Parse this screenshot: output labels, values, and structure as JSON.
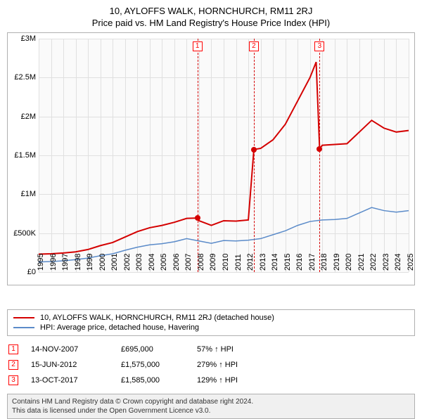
{
  "title": {
    "line1": "10, AYLOFFS WALK, HORNCHURCH, RM11 2RJ",
    "line2": "Price paid vs. HM Land Registry's House Price Index (HPI)"
  },
  "chart": {
    "type": "line",
    "background_color": "#fafafa",
    "grid_color": "#e0e0e0",
    "border_color": "#b0b0b0",
    "y": {
      "min": 0,
      "max": 3000000,
      "ticks": [
        {
          "v": 0,
          "label": "£0"
        },
        {
          "v": 500000,
          "label": "£500K"
        },
        {
          "v": 1000000,
          "label": "£1M"
        },
        {
          "v": 1500000,
          "label": "£1.5M"
        },
        {
          "v": 2000000,
          "label": "£2M"
        },
        {
          "v": 2500000,
          "label": "£2.5M"
        },
        {
          "v": 3000000,
          "label": "£3M"
        }
      ]
    },
    "x": {
      "min": 1995,
      "max": 2025,
      "ticks": [
        1995,
        1996,
        1997,
        1998,
        1999,
        2000,
        2001,
        2002,
        2003,
        2004,
        2005,
        2006,
        2007,
        2008,
        2009,
        2010,
        2011,
        2012,
        2013,
        2014,
        2015,
        2016,
        2017,
        2018,
        2019,
        2020,
        2021,
        2022,
        2023,
        2024,
        2025
      ]
    },
    "series": {
      "property": {
        "label": "10, AYLOFFS WALK, HORNCHURCH, RM11 2RJ (detached house)",
        "color": "#d40000",
        "line_width": 2,
        "points": [
          [
            1995,
            230000
          ],
          [
            1996,
            235000
          ],
          [
            1997,
            245000
          ],
          [
            1998,
            260000
          ],
          [
            1999,
            290000
          ],
          [
            2000,
            340000
          ],
          [
            2001,
            380000
          ],
          [
            2002,
            450000
          ],
          [
            2003,
            520000
          ],
          [
            2004,
            570000
          ],
          [
            2005,
            600000
          ],
          [
            2006,
            640000
          ],
          [
            2007,
            690000
          ],
          [
            2007.87,
            695000
          ],
          [
            2008,
            660000
          ],
          [
            2009,
            600000
          ],
          [
            2010,
            660000
          ],
          [
            2011,
            655000
          ],
          [
            2012,
            670000
          ],
          [
            2012.45,
            1575000
          ],
          [
            2013,
            1590000
          ],
          [
            2014,
            1700000
          ],
          [
            2015,
            1900000
          ],
          [
            2016,
            2200000
          ],
          [
            2017,
            2500000
          ],
          [
            2017.5,
            2700000
          ],
          [
            2017.78,
            1585000
          ],
          [
            2018,
            1630000
          ],
          [
            2019,
            1640000
          ],
          [
            2020,
            1650000
          ],
          [
            2021,
            1800000
          ],
          [
            2022,
            1950000
          ],
          [
            2023,
            1850000
          ],
          [
            2024,
            1800000
          ],
          [
            2025,
            1820000
          ]
        ]
      },
      "hpi": {
        "label": "HPI: Average price, detached house, Havering",
        "color": "#5b8bc9",
        "line_width": 1.5,
        "points": [
          [
            1995,
            130000
          ],
          [
            1996,
            135000
          ],
          [
            1997,
            145000
          ],
          [
            1998,
            160000
          ],
          [
            1999,
            180000
          ],
          [
            2000,
            210000
          ],
          [
            2001,
            235000
          ],
          [
            2002,
            280000
          ],
          [
            2003,
            320000
          ],
          [
            2004,
            350000
          ],
          [
            2005,
            365000
          ],
          [
            2006,
            390000
          ],
          [
            2007,
            430000
          ],
          [
            2008,
            400000
          ],
          [
            2009,
            370000
          ],
          [
            2010,
            405000
          ],
          [
            2011,
            400000
          ],
          [
            2012,
            410000
          ],
          [
            2013,
            430000
          ],
          [
            2014,
            480000
          ],
          [
            2015,
            530000
          ],
          [
            2016,
            600000
          ],
          [
            2017,
            650000
          ],
          [
            2018,
            670000
          ],
          [
            2019,
            675000
          ],
          [
            2020,
            690000
          ],
          [
            2021,
            760000
          ],
          [
            2022,
            830000
          ],
          [
            2023,
            790000
          ],
          [
            2024,
            770000
          ],
          [
            2025,
            790000
          ]
        ]
      }
    },
    "sale_markers": [
      {
        "num": "1",
        "year": 2007.87,
        "value": 695000
      },
      {
        "num": "2",
        "year": 2012.45,
        "value": 1575000
      },
      {
        "num": "3",
        "year": 2017.78,
        "value": 1585000
      }
    ]
  },
  "legend": {
    "items": [
      {
        "color": "#d40000",
        "label": "10, AYLOFFS WALK, HORNCHURCH, RM11 2RJ (detached house)"
      },
      {
        "color": "#5b8bc9",
        "label": "HPI: Average price, detached house, Havering"
      }
    ]
  },
  "sales": [
    {
      "num": "1",
      "date": "14-NOV-2007",
      "price": "£695,000",
      "change": "57% ↑ HPI"
    },
    {
      "num": "2",
      "date": "15-JUN-2012",
      "price": "£1,575,000",
      "change": "279% ↑ HPI"
    },
    {
      "num": "3",
      "date": "13-OCT-2017",
      "price": "£1,585,000",
      "change": "129% ↑ HPI"
    }
  ],
  "footer": {
    "line1": "Contains HM Land Registry data © Crown copyright and database right 2024.",
    "line2": "This data is licensed under the Open Government Licence v3.0."
  }
}
